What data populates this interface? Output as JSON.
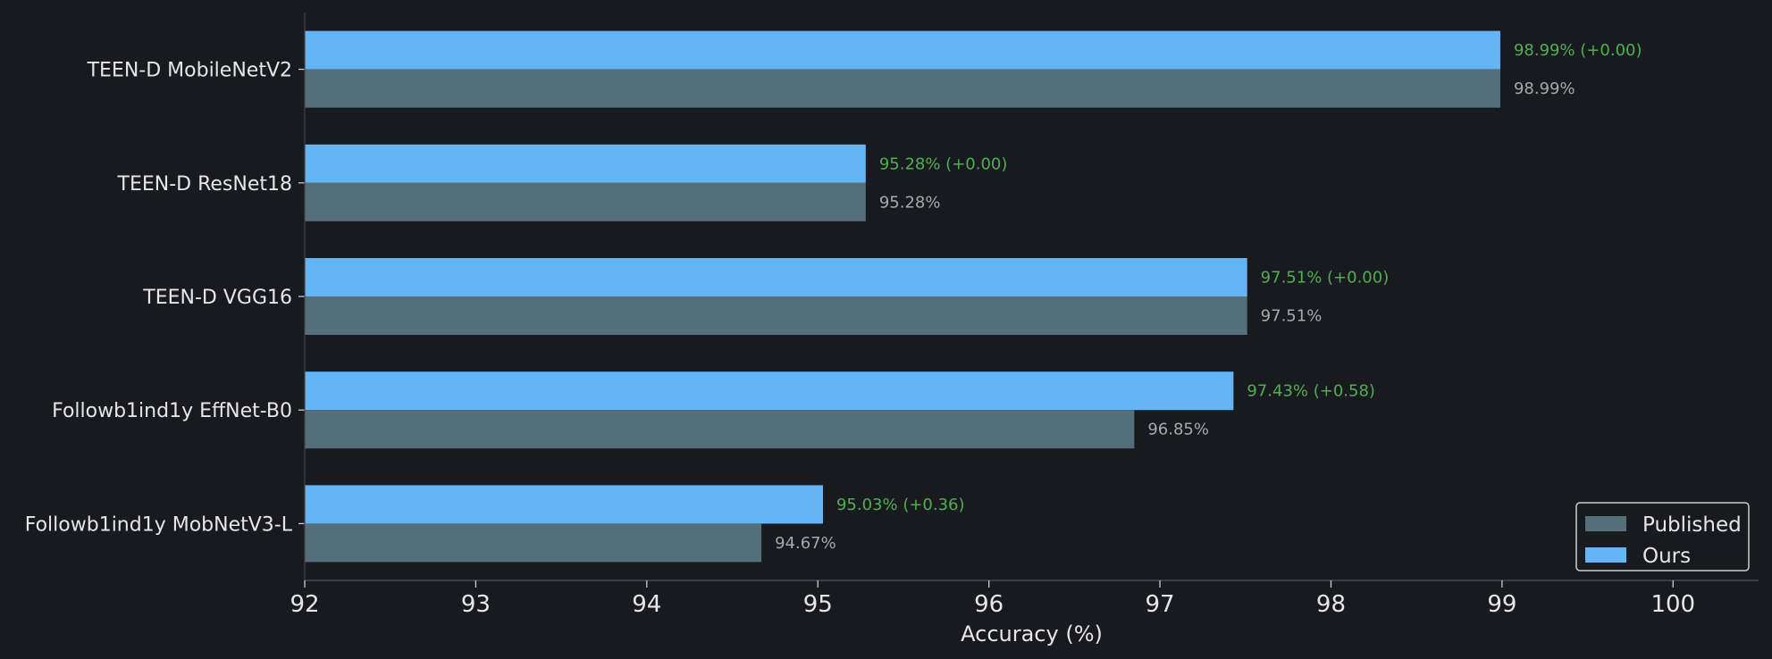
{
  "chart_data": {
    "type": "bar",
    "orientation": "horizontal",
    "title": "",
    "xlabel": "Accuracy (%)",
    "ylabel": "",
    "xlim": [
      92,
      100.5
    ],
    "xticks": [
      "92",
      "93",
      "94",
      "95",
      "96",
      "97",
      "98",
      "99",
      "100"
    ],
    "grid": false,
    "legend_position": "bottom-right",
    "categories": [
      "TEEN-D MobileNetV2",
      "TEEN-D ResNet18",
      "TEEN-D VGG16",
      "Followb1ind1y EffNet-B0",
      "Followb1ind1y MobNetV3-L"
    ],
    "series": [
      {
        "name": "Published",
        "color": "#546e7a",
        "values": [
          98.99,
          95.28,
          97.51,
          96.85,
          94.67
        ],
        "labels": [
          "98.99%",
          "95.28%",
          "97.51%",
          "96.85%",
          "94.67%"
        ]
      },
      {
        "name": "Ours",
        "color": "#64b5f6",
        "values": [
          98.99,
          95.28,
          97.51,
          97.43,
          95.03
        ],
        "labels": [
          "98.99% (+0.00)",
          "95.28% (+0.00)",
          "97.51% (+0.00)",
          "97.43% (+0.58)",
          "95.03% (+0.36)"
        ]
      }
    ],
    "colors": {
      "background": "#191a1f",
      "axis": "#555555",
      "text": "#e6e6e6",
      "ours_label": "#4caf50",
      "published_label": "#a8a8a8",
      "legend_border": "#cccccc"
    }
  }
}
